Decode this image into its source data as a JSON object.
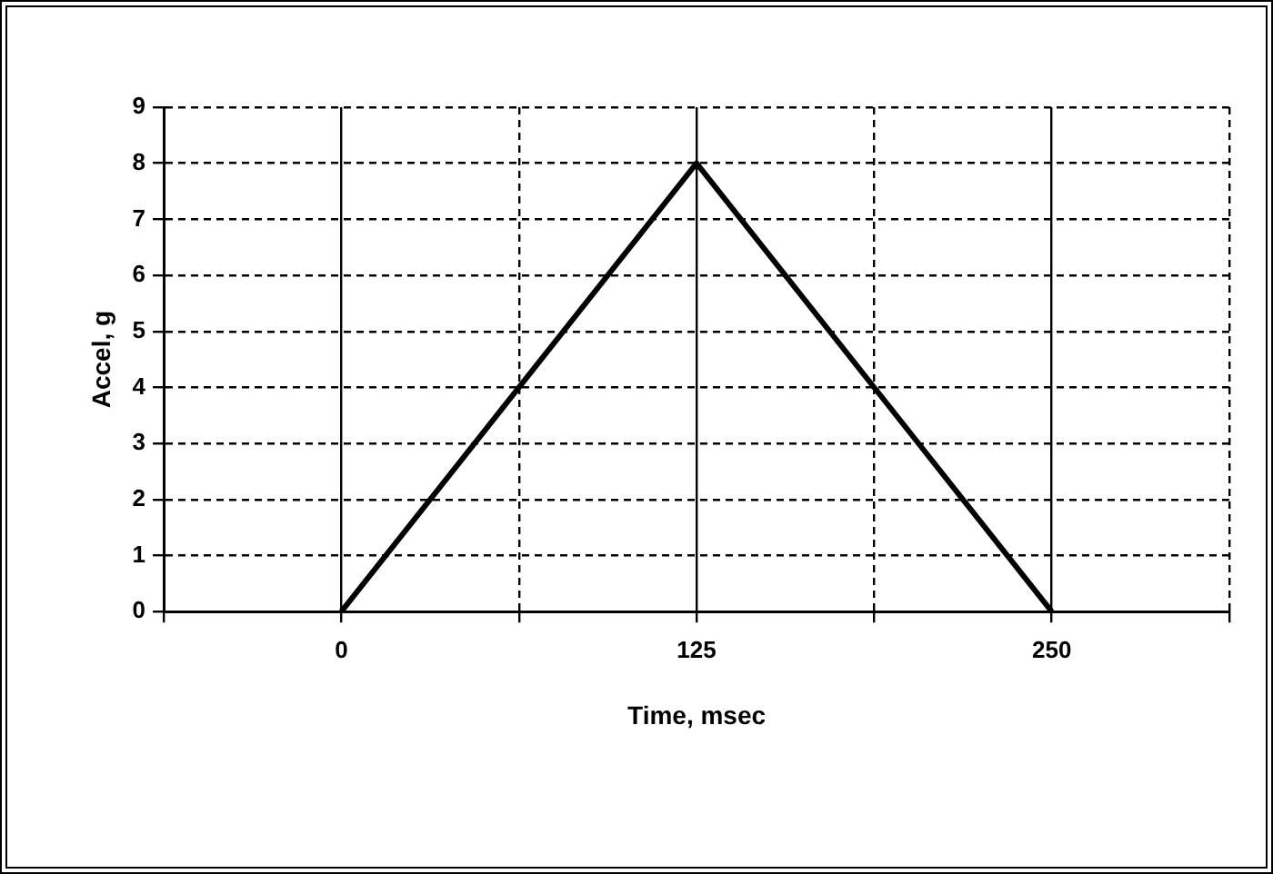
{
  "chart_data": {
    "type": "line",
    "xlabel": "Time, msec",
    "ylabel": "Accel, g",
    "x": [
      0,
      125,
      250
    ],
    "series": [
      {
        "color": "#000000",
        "values": [
          0,
          8,
          0
        ]
      }
    ],
    "xlim": [
      -62.5,
      312.5
    ],
    "xticks": [
      {
        "value": -62.5,
        "label": null
      },
      0,
      {
        "value": 62.5,
        "label": null
      },
      125,
      {
        "value": 187.5,
        "label": null
      },
      250,
      {
        "value": 312.5,
        "label": null
      }
    ],
    "ylim": [
      0,
      9
    ],
    "yticks": [
      0,
      1,
      2,
      3,
      4,
      5,
      6,
      7,
      8,
      9
    ],
    "grid": true,
    "legend": false,
    "marker": "none",
    "line_style": "solid"
  }
}
